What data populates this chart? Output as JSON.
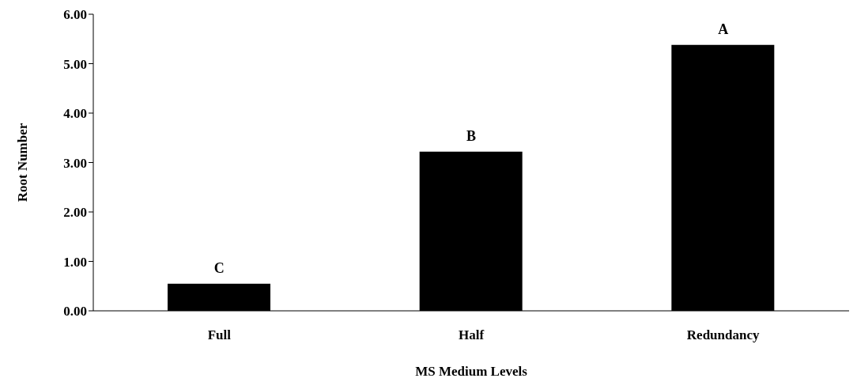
{
  "chart_data": {
    "type": "bar",
    "xlabel": "MS Medium Levels",
    "ylabel": "Root Number",
    "categories": [
      "Full",
      "Half",
      "Redundancy"
    ],
    "values": [
      0.55,
      3.22,
      5.38
    ],
    "color": "#000000",
    "ylim": [
      0,
      6
    ],
    "yticks": [
      {
        "value": 0,
        "label": "0.00"
      },
      {
        "value": 1,
        "label": "1.00"
      },
      {
        "value": 2,
        "label": "2.00"
      },
      {
        "value": 3,
        "label": "3.00"
      },
      {
        "value": 4,
        "label": "4.00"
      },
      {
        "value": 5,
        "label": "5.00"
      },
      {
        "value": 6,
        "label": "6.00"
      }
    ],
    "grid": false,
    "legend": false,
    "annotations": [
      {
        "text": "C",
        "x": "Full",
        "y": 0.55
      },
      {
        "text": "B",
        "x": "Half",
        "y": 3.22
      },
      {
        "text": "A",
        "x": "Redundancy",
        "y": 5.38
      }
    ]
  }
}
